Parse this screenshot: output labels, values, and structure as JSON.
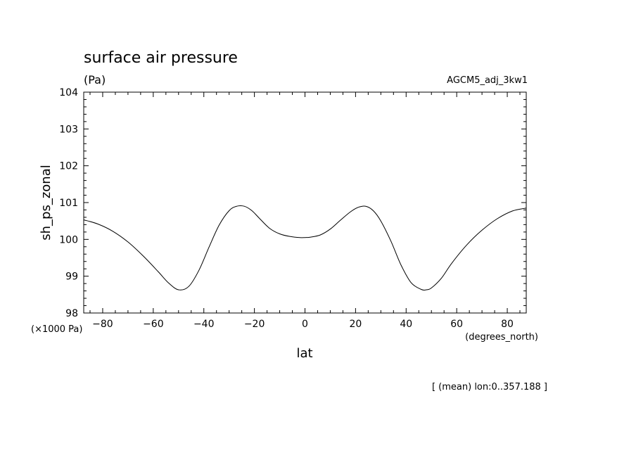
{
  "chart_data": {
    "type": "line",
    "title": "surface air pressure",
    "units": "(Pa)",
    "model_label": "AGCM5_adj_3kw1",
    "xlabel": "lat",
    "ylabel": "sh_ps_zonal",
    "x_units": "(degrees_north)",
    "y_scale_note": "(×1000 Pa)",
    "footnote": "[ (mean) lon:0..357.188 ]",
    "xlim": [
      -87.5,
      87.5
    ],
    "ylim": [
      98,
      104
    ],
    "xticks": [
      -80,
      -60,
      -40,
      -20,
      0,
      20,
      40,
      60,
      80
    ],
    "xtick_labels": [
      "−80",
      "−60",
      "−40",
      "−20",
      "0",
      "20",
      "40",
      "60",
      "80"
    ],
    "yticks": [
      98,
      99,
      100,
      101,
      102,
      103,
      104
    ],
    "ytick_labels": [
      "98",
      "99",
      "100",
      "101",
      "102",
      "103",
      "104"
    ],
    "grid": false,
    "series": [
      {
        "x": [
          -87.5,
          -82,
          -76,
          -70,
          -64,
          -58,
          -54,
          -50,
          -46,
          -42,
          -38,
          -34,
          -30,
          -27,
          -24,
          -21,
          -18,
          -14,
          -10,
          -6,
          -2,
          0,
          2,
          6,
          10,
          14,
          18,
          21,
          24,
          27,
          30,
          34,
          38,
          42,
          46,
          48,
          50,
          54,
          58,
          64,
          70,
          76,
          82,
          87.5
        ],
        "y": [
          100.53,
          100.42,
          100.22,
          99.93,
          99.55,
          99.12,
          98.82,
          98.63,
          98.72,
          99.15,
          99.78,
          100.38,
          100.78,
          100.9,
          100.9,
          100.78,
          100.57,
          100.3,
          100.15,
          100.08,
          100.05,
          100.05,
          100.06,
          100.12,
          100.28,
          100.52,
          100.75,
          100.87,
          100.9,
          100.78,
          100.5,
          99.95,
          99.3,
          98.82,
          98.64,
          98.63,
          98.68,
          98.95,
          99.35,
          99.85,
          100.25,
          100.56,
          100.77,
          100.85
        ]
      }
    ]
  }
}
